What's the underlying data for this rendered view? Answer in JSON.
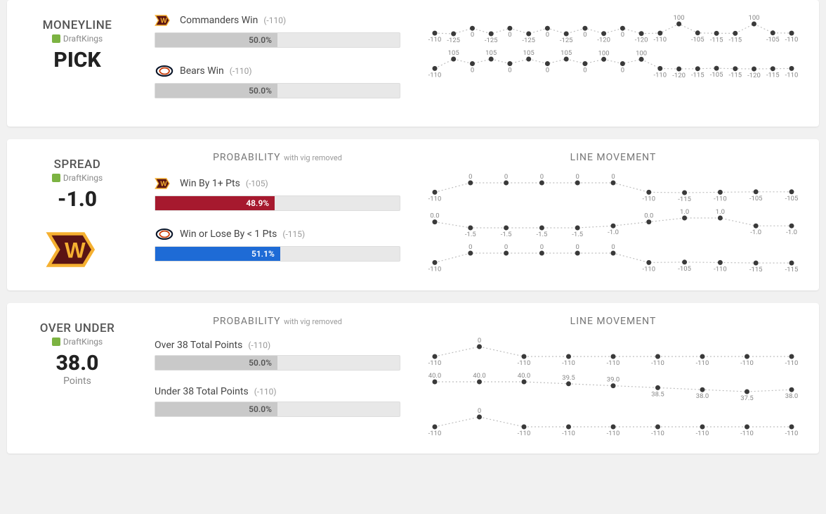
{
  "colors": {
    "gray_fill": "#c9c9c9",
    "red_fill": "#a6192e",
    "blue_fill": "#1e6bd6",
    "point_fill": "#3a3a3a",
    "line_stroke": "#bfbfbf",
    "label_color": "#888"
  },
  "panels": [
    {
      "type": "MONEYLINE",
      "book": "DraftKings",
      "big_value": "PICK",
      "sub_label": "",
      "show_big_logo": false,
      "prob_title": "PROBABILITY",
      "prob_sub": "with vig removed",
      "hide_prob_title": true,
      "outcomes": [
        {
          "team": "commanders",
          "label": "Commanders Win",
          "odds": "(-110)",
          "pct": 50.0,
          "pct_text": "50.0%",
          "fill": "gray"
        },
        {
          "team": "bears",
          "label": "Bears Win",
          "odds": "(-110)",
          "pct": 50.0,
          "pct_text": "50.0%",
          "fill": "gray"
        }
      ],
      "lm_title": "LINE MOVEMENT",
      "hide_lm_title": true,
      "lm_rows": [
        {
          "points": [
            {
              "label": "-110"
            },
            {
              "label": "-125"
            },
            {
              "label": "0"
            },
            {
              "label": "-125"
            },
            {
              "label": "0"
            },
            {
              "label": "-125"
            },
            {
              "label": "0"
            },
            {
              "label": "-125"
            },
            {
              "label": "0"
            },
            {
              "label": "-120"
            },
            {
              "label": "0"
            },
            {
              "label": "-120"
            },
            {
              "label": "-110"
            },
            {
              "label": "100"
            },
            {
              "label": "-105"
            },
            {
              "label": "-115"
            },
            {
              "label": "-115"
            },
            {
              "label": "100"
            },
            {
              "label": "-105"
            },
            {
              "label": "-110"
            }
          ]
        },
        {
          "points": [
            {
              "label": "-110"
            },
            {
              "label": "105"
            },
            {
              "label": "0"
            },
            {
              "label": "105"
            },
            {
              "label": "0"
            },
            {
              "label": "105"
            },
            {
              "label": "0"
            },
            {
              "label": "105"
            },
            {
              "label": "0"
            },
            {
              "label": "100"
            },
            {
              "label": "0"
            },
            {
              "label": "100"
            },
            {
              "label": "-110"
            },
            {
              "label": "-120"
            },
            {
              "label": "-115"
            },
            {
              "label": "-105"
            },
            {
              "label": "-115"
            },
            {
              "label": "-120"
            },
            {
              "label": "-115"
            },
            {
              "label": "-110"
            }
          ]
        }
      ]
    },
    {
      "type": "SPREAD",
      "book": "DraftKings",
      "big_value": "-1.0",
      "sub_label": "",
      "show_big_logo": true,
      "big_logo_team": "commanders",
      "prob_title": "PROBABILITY",
      "prob_sub": "with vig removed",
      "hide_prob_title": false,
      "outcomes": [
        {
          "team": "commanders",
          "label": "Win By 1+ Pts",
          "odds": "(-105)",
          "pct": 48.9,
          "pct_text": "48.9%",
          "fill": "red"
        },
        {
          "team": "bears",
          "label": "Win or Lose By < 1 Pts",
          "odds": "(-115)",
          "pct": 51.1,
          "pct_text": "51.1%",
          "fill": "blue"
        }
      ],
      "lm_title": "LINE MOVEMENT",
      "hide_lm_title": false,
      "lm_rows": [
        {
          "points": [
            {
              "label": "-110"
            },
            {
              "label": "0"
            },
            {
              "label": "0"
            },
            {
              "label": "0"
            },
            {
              "label": "0"
            },
            {
              "label": "0"
            },
            {
              "label": "-110"
            },
            {
              "label": "-115"
            },
            {
              "label": "-110"
            },
            {
              "label": "-105"
            },
            {
              "label": "-105"
            }
          ]
        },
        {
          "points": [
            {
              "label": "0.0"
            },
            {
              "label": "-1.5"
            },
            {
              "label": "-1.5"
            },
            {
              "label": "-1.5"
            },
            {
              "label": "-1.5"
            },
            {
              "label": "-1.0"
            },
            {
              "label": "0.0"
            },
            {
              "label": "1.0"
            },
            {
              "label": "1.0"
            },
            {
              "label": "-1.0"
            },
            {
              "label": "-1.0"
            }
          ]
        },
        {
          "points": [
            {
              "label": "-110"
            },
            {
              "label": "0"
            },
            {
              "label": "0"
            },
            {
              "label": "0"
            },
            {
              "label": "0"
            },
            {
              "label": "0"
            },
            {
              "label": "-110"
            },
            {
              "label": "-105"
            },
            {
              "label": "-110"
            },
            {
              "label": "-115"
            },
            {
              "label": "-115"
            }
          ]
        }
      ]
    },
    {
      "type": "OVER UNDER",
      "book": "DraftKings",
      "big_value": "38.0",
      "sub_label": "Points",
      "show_big_logo": false,
      "prob_title": "PROBABILITY",
      "prob_sub": "with vig removed",
      "hide_prob_title": false,
      "outcomes": [
        {
          "team": "",
          "label": "Over 38 Total Points",
          "odds": "(-110)",
          "pct": 50.0,
          "pct_text": "50.0%",
          "fill": "gray"
        },
        {
          "team": "",
          "label": "Under 38 Total Points",
          "odds": "(-110)",
          "pct": 50.0,
          "pct_text": "50.0%",
          "fill": "gray"
        }
      ],
      "lm_title": "LINE MOVEMENT",
      "hide_lm_title": false,
      "lm_rows": [
        {
          "points": [
            {
              "label": "-110"
            },
            {
              "label": "0"
            },
            {
              "label": "-110"
            },
            {
              "label": "-110"
            },
            {
              "label": "-110"
            },
            {
              "label": "-110"
            },
            {
              "label": "-110"
            },
            {
              "label": "-110"
            },
            {
              "label": "-110"
            }
          ]
        },
        {
          "points": [
            {
              "label": "40.0"
            },
            {
              "label": "40.0"
            },
            {
              "label": "40.0"
            },
            {
              "label": "39.5"
            },
            {
              "label": "39.0"
            },
            {
              "label": "38.5"
            },
            {
              "label": "38.0"
            },
            {
              "label": "37.5"
            },
            {
              "label": "38.0"
            }
          ]
        },
        {
          "points": [
            {
              "label": "-110"
            },
            {
              "label": "0"
            },
            {
              "label": "-110"
            },
            {
              "label": "-110"
            },
            {
              "label": "-110"
            },
            {
              "label": "-110"
            },
            {
              "label": "-110"
            },
            {
              "label": "-110"
            },
            {
              "label": "-110"
            }
          ]
        }
      ]
    }
  ]
}
